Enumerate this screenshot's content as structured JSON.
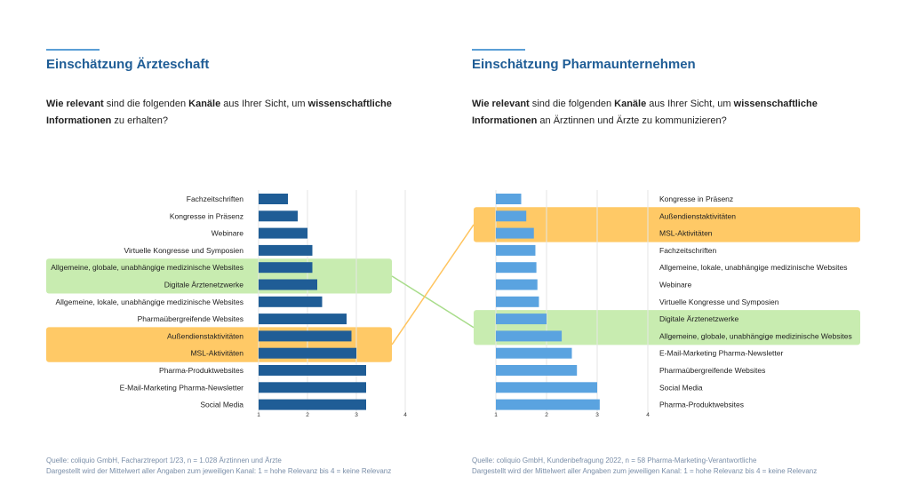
{
  "left_panel": {
    "heading": "Einschätzung Ärzteschaft",
    "question": {
      "b1": "Wie relevant",
      "t1": " sind die folgenden ",
      "b2": "Kanäle",
      "t2": " aus Ihrer Sicht, um ",
      "b3": "wissenschaftliche Informationen",
      "t3": " zu erhalten?"
    },
    "source": "Quelle: coliquio GmbH, Facharztreport 1/23, n = 1.028 Ärztinnen und Ärzte",
    "note": "Dargestellt wird der Mittelwert aller Angaben zum jeweiligen Kanal: 1 = hohe Relevanz bis 4 = keine Relevanz"
  },
  "right_panel": {
    "heading": "Einschätzung Pharmaunternehmen",
    "question": {
      "b1": "Wie relevant",
      "t1": " sind die folgenden ",
      "b2": "Kanäle",
      "t2": " aus Ihrer Sicht,  um ",
      "b3": "wissenschaftliche Informationen",
      "t3": " an Ärztinnen und Ärzte zu kommunizieren?"
    },
    "source": "Quelle: coliquio GmbH, Kundenbefragung 2022, n = 58 Pharma-Marketing-Verantwortliche",
    "note": "Dargestellt wird der Mittelwert aller Angaben zum jeweiligen Kanal: 1 = hohe Relevanz bis 4 = keine Relevanz"
  },
  "colors": {
    "left_bar": "#1f5d96",
    "right_bar": "#5aa3e0",
    "highlight_green": "#c8ecb0",
    "highlight_orange": "#ffc966",
    "connector_green": "#a8dc8a",
    "connector_orange": "#ffc45e",
    "grid": "#e6e6e6"
  },
  "chart_data": [
    {
      "type": "bar",
      "orientation": "horizontal",
      "title": "Einschätzung Ärzteschaft",
      "xlim": [
        1,
        4
      ],
      "xticks": [
        "1",
        "2",
        "3",
        "4"
      ],
      "categories": [
        "Fachzeitschriften",
        "Kongresse in Präsenz",
        "Webinare",
        "Virtuelle Kongresse und Symposien",
        "Allgemeine, globale, unabhängige medizinische Websites",
        "Digitale Ärztenetzwerke",
        "Allgemeine, lokale, unabhängige medizinische Websites",
        "Pharmaübergreifende Websites",
        "Außendienstaktivitäten",
        "MSL-Aktivitäten",
        "Pharma-Produktwebsites",
        "E-Mail-Marketing Pharma-Newsletter",
        "Social Media"
      ],
      "values": [
        1.6,
        1.8,
        2.0,
        2.1,
        2.1,
        2.2,
        2.3,
        2.8,
        2.9,
        3.0,
        3.2,
        3.2,
        3.2
      ],
      "highlight_green": [
        4,
        5
      ],
      "highlight_orange": [
        8,
        9
      ]
    },
    {
      "type": "bar",
      "orientation": "horizontal",
      "title": "Einschätzung Pharmaunternehmen",
      "xlim": [
        1,
        4
      ],
      "xticks": [
        "1",
        "2",
        "3",
        "4"
      ],
      "categories": [
        "Kongresse in Präsenz",
        "Außendienstaktivitäten",
        "MSL-Aktivitäten",
        "Fachzeitschriften",
        "Allgemeine, lokale, unabhängige medizinische Websites",
        "Webinare",
        "Virtuelle Kongresse und Symposien",
        "Digitale Ärztenetzwerke",
        "Allgemeine, globale, unabhängige medizinische Websites",
        "E-Mail-Marketing Pharma-Newsletter",
        "Pharmaübergreifende Websites",
        "Social Media",
        "Pharma-Produktwebsites"
      ],
      "values": [
        1.5,
        1.6,
        1.75,
        1.78,
        1.8,
        1.82,
        1.85,
        2.0,
        2.3,
        2.5,
        2.6,
        3.0,
        3.05
      ],
      "highlight_green": [
        7,
        8
      ],
      "highlight_orange": [
        1,
        2
      ]
    }
  ]
}
